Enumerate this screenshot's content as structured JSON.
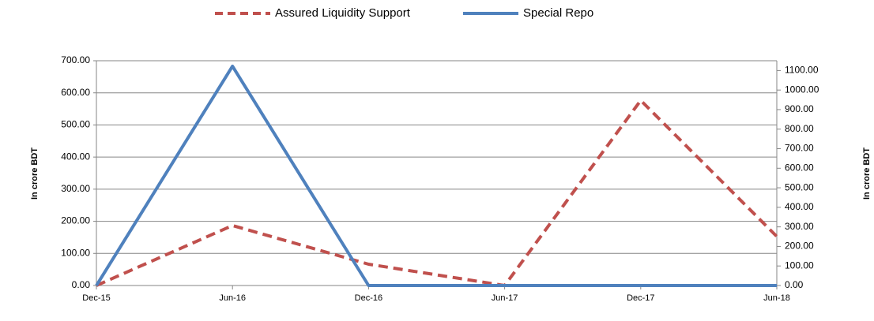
{
  "chart_data": {
    "type": "line",
    "categories": [
      "Dec-15",
      "Jun-16",
      "Dec-16",
      "Jun-17",
      "Dec-17",
      "Jun-18"
    ],
    "ylabel": "In crore BDT",
    "y2label": "In crore BDT",
    "ylim": [
      0,
      700
    ],
    "yticks": [
      {
        "value": 0,
        "label": "0.00"
      },
      {
        "value": 100,
        "label": "100.00"
      },
      {
        "value": 200,
        "label": "200.00"
      },
      {
        "value": 300,
        "label": "300.00"
      },
      {
        "value": 400,
        "label": "400.00"
      },
      {
        "value": 500,
        "label": "500.00"
      },
      {
        "value": 600,
        "label": "600.00"
      },
      {
        "value": 700,
        "label": "700.00"
      }
    ],
    "y2lim": [
      0,
      1150
    ],
    "y2ticks": [
      {
        "value": 0,
        "label": "0.00"
      },
      {
        "value": 100,
        "label": "100.00"
      },
      {
        "value": 200,
        "label": "200.00"
      },
      {
        "value": 300,
        "label": "300.00"
      },
      {
        "value": 400,
        "label": "400.00"
      },
      {
        "value": 500,
        "label": "500.00"
      },
      {
        "value": 600,
        "label": "600.00"
      },
      {
        "value": 700,
        "label": "700.00"
      },
      {
        "value": 800,
        "label": "800.00"
      },
      {
        "value": 900,
        "label": "900.00"
      },
      {
        "value": 1000,
        "label": "1000.00"
      },
      {
        "value": 1100,
        "label": "1100.00"
      }
    ],
    "grid": true,
    "legend": "top",
    "series": [
      {
        "name": "Assured Liquidity Support",
        "color": "#c0504d",
        "dashed": true,
        "axis": "y2",
        "values": [
          0,
          307,
          109,
          0,
          947,
          251
        ]
      },
      {
        "name": "Special Repo",
        "color": "#4f81bd",
        "dashed": false,
        "values": [
          0,
          683,
          0,
          0,
          0,
          0
        ]
      }
    ]
  }
}
